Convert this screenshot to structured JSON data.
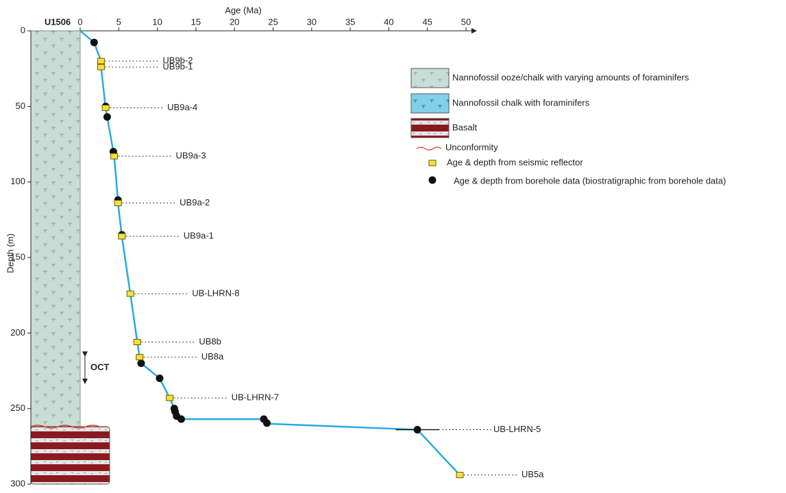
{
  "chart_data": {
    "type": "line",
    "x_label": "Age (Ma)",
    "y_label": "Depth (m)",
    "site": "U1506",
    "oct_label": "OCT",
    "oct_range": [
      214,
      232
    ],
    "xlim": [
      0,
      50
    ],
    "ylim": [
      0,
      300
    ],
    "xticks": [
      0,
      5,
      10,
      15,
      20,
      25,
      30,
      35,
      40,
      45,
      50
    ],
    "yticks": [
      0,
      50,
      100,
      150,
      200,
      250,
      300
    ],
    "units": [
      {
        "name": "Nannofossil ooze/chalk with varying amounts of foraminifers",
        "color": "#c9ddd7",
        "top": 0,
        "base": 262
      },
      {
        "name": "Nannofossil chalk with foraminifers",
        "color": "#7fd0ea"
      },
      {
        "name": "Basalt",
        "color": "#8b1a1f",
        "top": 262,
        "base": 300
      }
    ],
    "unconformity": {
      "name": "Unconformity",
      "color": "#e03b2a"
    },
    "series": [
      {
        "color": "#29a9de",
        "x": [
          0,
          1.8,
          2.7,
          2.7,
          3.3,
          3.5,
          4.3,
          4.4,
          4.9,
          4.9,
          5.4,
          6.5,
          7.4,
          7.7,
          7.9,
          10.3,
          11.6,
          12.2,
          12.5,
          13.1,
          23.8,
          24.2,
          43.7,
          49.2
        ],
        "values": [
          0,
          7.7,
          20,
          24,
          51,
          57,
          80,
          83,
          112,
          114,
          136,
          174,
          206,
          216,
          220,
          230,
          243,
          250,
          255,
          257,
          257,
          260,
          264,
          294
        ]
      },
      {
        "name": "Age & depth from seismic reflector",
        "color": "#f5e13a",
        "x": [
          2.7,
          2.7,
          3.3,
          4.4,
          4.9,
          5.4,
          6.5,
          7.4,
          7.7,
          11.6,
          49.2
        ],
        "values": [
          20,
          24,
          51,
          83,
          114,
          136,
          174,
          206,
          216,
          243,
          294
        ],
        "labels": [
          "UB9b-2",
          "UB9b-1",
          "UB9a-4",
          "UB9a-3",
          "UB9a-2",
          "UB9a-1",
          "UB-LHRN-8",
          "UB8b",
          "UB8a",
          "UB-LHRN-7",
          "UB5a"
        ]
      },
      {
        "name": "Age & depth from borehole data (biostratigraphic from borehole data)",
        "color": "#111111",
        "x": [
          1.8,
          3.3,
          3.5,
          4.3,
          4.9,
          5.4,
          7.9,
          10.3,
          12.2,
          12.3,
          12.5,
          13.1,
          23.8,
          24.2,
          43.7
        ],
        "values": [
          7.7,
          50,
          57,
          80,
          112,
          135,
          220,
          230,
          250,
          252,
          255,
          257,
          257,
          259.6,
          264
        ],
        "xerr": [
          null,
          null,
          null,
          null,
          null,
          null,
          null,
          null,
          null,
          null,
          null,
          null,
          null,
          null,
          2.8
        ],
        "labels": [
          null,
          null,
          null,
          null,
          null,
          null,
          null,
          null,
          null,
          null,
          null,
          null,
          null,
          null,
          "UB-LHRN-5"
        ]
      }
    ]
  }
}
